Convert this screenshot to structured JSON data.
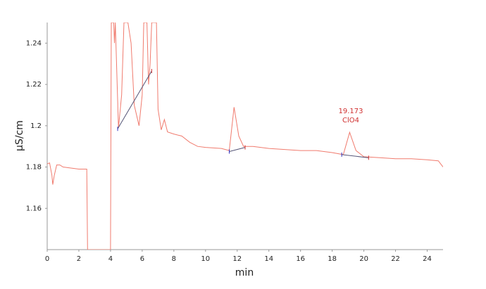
{
  "chart_data": {
    "type": "line",
    "color": "#f07b6e",
    "baseline_color": "#555577",
    "x_label": "min",
    "y_label": "µS/cm",
    "xlim": [
      0,
      25
    ],
    "ylim": [
      1.14,
      1.25
    ],
    "xticks": [
      0,
      2,
      4,
      6,
      8,
      10,
      12,
      14,
      16,
      18,
      20,
      22,
      24
    ],
    "yticks": [
      1.16,
      1.18,
      1.2,
      1.22,
      1.24
    ],
    "x": [
      0,
      0.15,
      0.3,
      0.35,
      0.45,
      0.6,
      0.8,
      1.0,
      1.5,
      2.0,
      2.5,
      2.55,
      4.0,
      4.05,
      4.2,
      4.25,
      4.3,
      4.5,
      4.7,
      4.85,
      5.1,
      5.3,
      5.5,
      5.8,
      6.0,
      6.1,
      6.3,
      6.4,
      6.5,
      6.6,
      6.9,
      7.0,
      7.2,
      7.4,
      7.6,
      8.0,
      8.5,
      9.0,
      9.5,
      10,
      11,
      11.5,
      11.8,
      12.1,
      12.4,
      13,
      14,
      15,
      16,
      17,
      18,
      18.7,
      19.1,
      19.5,
      20,
      21,
      22,
      23,
      24,
      24.7,
      25
    ],
    "values": [
      1.1815,
      1.182,
      1.176,
      1.1715,
      1.176,
      1.181,
      1.181,
      1.18,
      1.1795,
      1.179,
      1.179,
      1.14,
      1.14,
      1.25,
      1.25,
      1.24,
      1.25,
      1.199,
      1.215,
      1.25,
      1.25,
      1.24,
      1.21,
      1.2,
      1.215,
      1.25,
      1.25,
      1.22,
      1.23,
      1.25,
      1.25,
      1.208,
      1.198,
      1.203,
      1.197,
      1.196,
      1.195,
      1.192,
      1.19,
      1.1895,
      1.189,
      1.188,
      1.209,
      1.195,
      1.19,
      1.19,
      1.189,
      1.1885,
      1.188,
      1.188,
      1.187,
      1.186,
      1.1968,
      1.188,
      1.185,
      1.1845,
      1.184,
      1.184,
      1.1835,
      1.183,
      1.18
    ],
    "baselines": [
      {
        "x": [
          4.45,
          6.6
        ],
        "y": [
          1.1985,
          1.2265
        ]
      },
      {
        "x": [
          11.5,
          12.5
        ],
        "y": [
          1.1875,
          1.1895
        ]
      },
      {
        "x": [
          18.6,
          20.3
        ],
        "y": [
          1.186,
          1.1845
        ]
      }
    ],
    "annotation": {
      "x": 19.173,
      "text": "ClO4"
    }
  }
}
